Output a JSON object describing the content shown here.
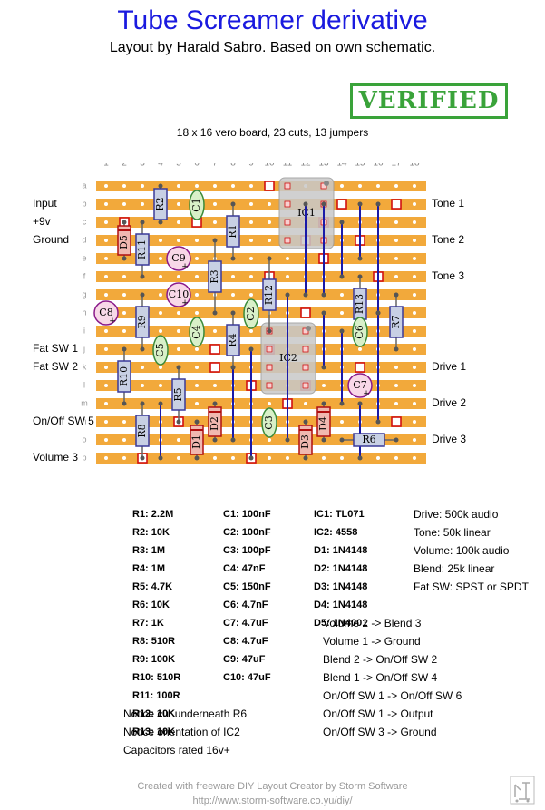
{
  "title": "Tube Screamer derivative",
  "subtitle": "Layout by Harald Sabro. Based on own schematic.",
  "stamp": "VERIFIED",
  "board_info": "18 x 16 vero board, 23 cuts, 13 jumpers",
  "columns": [
    "1",
    "2",
    "3",
    "4",
    "5",
    "6",
    "7",
    "8",
    "9",
    "10",
    "11",
    "12",
    "13",
    "14",
    "15",
    "16",
    "17",
    "18"
  ],
  "rows": [
    "a",
    "b",
    "c",
    "d",
    "e",
    "f",
    "g",
    "h",
    "i",
    "j",
    "k",
    "l",
    "m",
    "n",
    "o",
    "p"
  ],
  "left_labels": [
    {
      "text": "Input",
      "row": 1
    },
    {
      "text": "+9v",
      "row": 2
    },
    {
      "text": "Ground",
      "row": 3
    },
    {
      "text": "Fat SW 1",
      "row": 9
    },
    {
      "text": "Fat SW 2",
      "row": 10
    },
    {
      "text": "On/Off SW 5",
      "row": 13
    },
    {
      "text": "Volume 3",
      "row": 15
    }
  ],
  "right_labels": [
    {
      "text": "Tone 1",
      "row": 1
    },
    {
      "text": "Tone 2",
      "row": 3
    },
    {
      "text": "Tone 3",
      "row": 5
    },
    {
      "text": "Drive 1",
      "row": 10
    },
    {
      "text": "Drive 2",
      "row": 12
    },
    {
      "text": "Drive 3",
      "row": 14
    }
  ],
  "components": {
    "resistors": [
      {
        "label": "R2",
        "c1": 4,
        "r1": 0,
        "c2": 4,
        "r2": 2
      },
      {
        "label": "R1",
        "c1": 8,
        "r1": 1,
        "c2": 8,
        "r2": 4
      },
      {
        "label": "R11",
        "c1": 3,
        "r1": 2,
        "c2": 3,
        "r2": 5
      },
      {
        "label": "R3",
        "c1": 7,
        "r1": 3,
        "c2": 7,
        "r2": 7
      },
      {
        "label": "R12",
        "c1": 10,
        "r1": 4,
        "c2": 10,
        "r2": 8
      },
      {
        "label": "R13",
        "c1": 15,
        "r1": 5,
        "c2": 15,
        "r2": 8
      },
      {
        "label": "R9",
        "c1": 3,
        "r1": 6,
        "c2": 3,
        "r2": 9
      },
      {
        "label": "R7",
        "c1": 17,
        "r1": 6,
        "c2": 17,
        "r2": 9
      },
      {
        "label": "R4",
        "c1": 8,
        "r1": 7,
        "c2": 8,
        "r2": 10
      },
      {
        "label": "R10",
        "c1": 2,
        "r1": 9,
        "c2": 2,
        "r2": 12
      },
      {
        "label": "R5",
        "c1": 5,
        "r1": 10,
        "c2": 5,
        "r2": 13
      },
      {
        "label": "R8",
        "c1": 3,
        "r1": 12,
        "c2": 3,
        "r2": 15
      },
      {
        "label": "R6",
        "c1": 14,
        "r1": 14,
        "c2": 17,
        "r2": 14
      }
    ],
    "ceramic_caps": [
      {
        "label": "C1",
        "col": 6,
        "row": 1
      },
      {
        "label": "C2",
        "col": 9,
        "row": 7
      },
      {
        "label": "C4",
        "col": 6,
        "row": 8
      },
      {
        "label": "C5",
        "col": 4,
        "row": 9
      },
      {
        "label": "C6",
        "col": 15,
        "row": 8
      },
      {
        "label": "C3",
        "col": 10,
        "row": 13
      }
    ],
    "electrolytic_caps": [
      {
        "label": "C9",
        "col": 5,
        "row": 4
      },
      {
        "label": "C10",
        "col": 5,
        "row": 6
      },
      {
        "label": "C8",
        "col": 1,
        "row": 7
      },
      {
        "label": "C7",
        "col": 15,
        "row": 11
      }
    ],
    "diodes": [
      {
        "label": "D5",
        "c1": 2,
        "r1": 2,
        "c2": 2,
        "r2": 4
      },
      {
        "label": "D1",
        "c1": 6,
        "r1": 13,
        "c2": 6,
        "r2": 15
      },
      {
        "label": "D2",
        "c1": 7,
        "r1": 12,
        "c2": 7,
        "r2": 14
      },
      {
        "label": "D3",
        "c1": 12,
        "r1": 13,
        "c2": 12,
        "r2": 15
      },
      {
        "label": "D4",
        "c1": 13,
        "r1": 12,
        "c2": 13,
        "r2": 14
      }
    ],
    "ics": [
      {
        "label": "IC1",
        "col": 11,
        "row": 0
      },
      {
        "label": "IC2",
        "col": 10,
        "row": 8
      }
    ]
  },
  "jumpers": [
    {
      "col": 12,
      "r1": 1,
      "r2": 6
    },
    {
      "col": 13,
      "r1": 1,
      "r2": 6
    },
    {
      "col": 14,
      "r1": 2,
      "r2": 5
    },
    {
      "col": 15,
      "r1": 1,
      "r2": 4
    },
    {
      "col": 16,
      "r1": 1,
      "r2": 7
    },
    {
      "col": 11,
      "r1": 6,
      "r2": 14
    },
    {
      "col": 13,
      "r1": 7,
      "r2": 10
    },
    {
      "col": 14,
      "r1": 8,
      "r2": 12
    },
    {
      "col": 16,
      "r1": 7,
      "r2": 13
    },
    {
      "col": 9,
      "r1": 9,
      "r2": 15
    },
    {
      "col": 8,
      "r1": 10,
      "r2": 14
    },
    {
      "col": 15,
      "r1": 12,
      "r2": 15
    },
    {
      "col": 4,
      "r1": 12,
      "r2": 15
    }
  ],
  "cuts": [
    {
      "col": 10,
      "row": 0
    },
    {
      "col": 14,
      "row": 1
    },
    {
      "col": 2,
      "row": 2
    },
    {
      "col": 15,
      "row": 3
    },
    {
      "col": 16,
      "row": 5
    },
    {
      "col": 10,
      "row": 5
    },
    {
      "col": 17,
      "row": 1
    },
    {
      "col": 13,
      "row": 2
    },
    {
      "col": 7,
      "row": 9
    },
    {
      "col": 7,
      "row": 10
    },
    {
      "col": 10,
      "row": 9
    },
    {
      "col": 15,
      "row": 10
    },
    {
      "col": 5,
      "row": 13
    },
    {
      "col": 17,
      "row": 13
    },
    {
      "col": 9,
      "row": 15
    },
    {
      "col": 12,
      "row": 3
    },
    {
      "col": 12,
      "row": 11
    },
    {
      "col": 9,
      "row": 11
    },
    {
      "col": 6,
      "row": 2
    },
    {
      "col": 3,
      "row": 15
    },
    {
      "col": 12,
      "row": 7
    },
    {
      "col": 13,
      "row": 4
    },
    {
      "col": 11,
      "row": 12
    }
  ],
  "values_resistors": [
    "R1: 2.2M",
    "R2: 10K",
    "R3: 1M",
    "R4: 1M",
    "R5: 4.7K",
    "R6: 10K",
    "R7: 1K",
    "R8: 510R",
    "R9: 100K",
    "R10: 510R",
    "R11: 100R",
    "R12: 10K",
    "R13: 10K"
  ],
  "values_caps": [
    "C1: 100nF",
    "C2: 100nF",
    "C3: 100pF",
    "C4: 47nF",
    "C5: 150nF",
    "C6: 4.7nF",
    "C7: 4.7uF",
    "C8: 4.7uF",
    "C9: 47uF",
    "C10: 47uF"
  ],
  "values_semis": [
    "IC1: TL071",
    "IC2: 4558",
    "D1: 1N4148",
    "D2: 1N4148",
    "D3: 1N4148",
    "D4: 1N4148",
    "D5: 1N4001"
  ],
  "pots": [
    "Drive: 500k audio",
    "Tone: 50k linear",
    "Volume: 100k audio",
    "Blend: 25k linear",
    "Fat SW: SPST or SPDT"
  ],
  "wiring": [
    "Volume 2 -> Blend 3",
    "Volume 1 -> Ground",
    "Blend 2 -> On/Off SW 2",
    "Blend 1 -> On/Off SW 4",
    "On/Off SW 1 -> On/Off SW 6",
    "On/Off SW 1 -> Output",
    "On/Off SW 3 -> Ground"
  ],
  "notes": [
    "Notice cut underneath R6",
    "Notice orientation of IC2",
    "Capacitors rated 16v+"
  ],
  "footer_line1": "Created with freeware DIY Layout Creator by Storm Software",
  "footer_line2": "http://www.storm-software.co.yu/diy/",
  "colors": {
    "strip": "#f2a93b",
    "board": "#ffffff",
    "jumper": "#1a1aa8",
    "cut": "#d01010",
    "resistor": "#c8d0e4",
    "ceramic": "#d8f0c8",
    "electro": "#f8d8e8",
    "diode": "#f0b8b0",
    "ic": "#c8c8c8"
  }
}
